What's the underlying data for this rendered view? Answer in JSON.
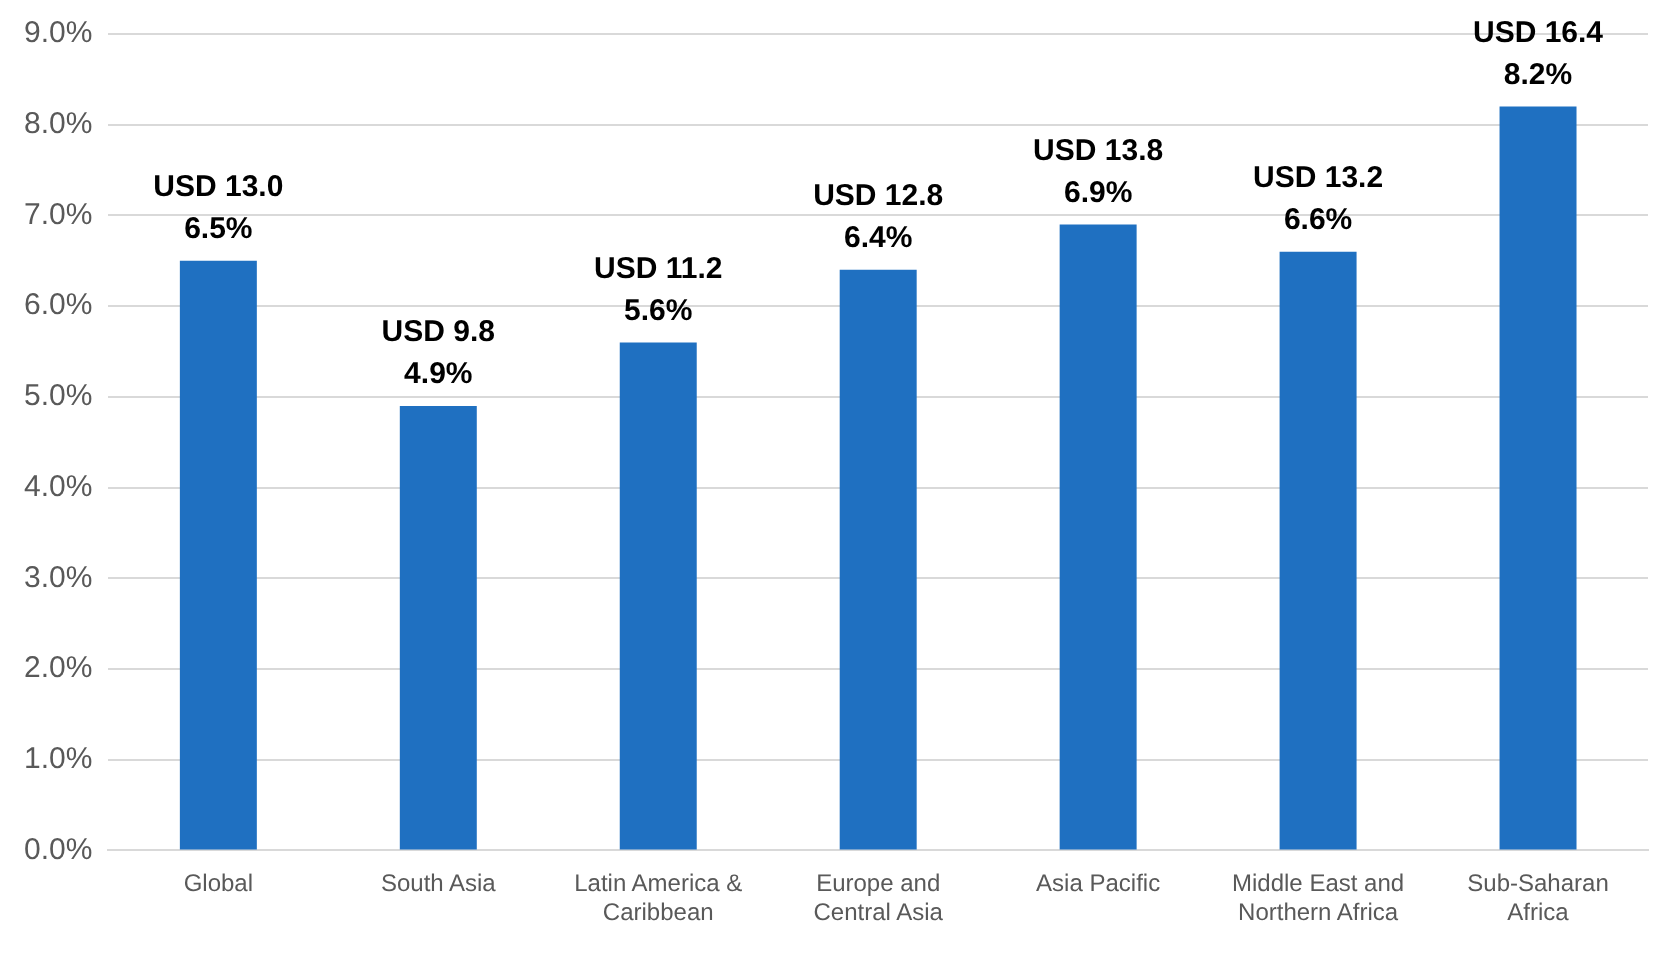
{
  "chart_data": {
    "type": "bar",
    "categories": [
      "Global",
      "South Asia",
      "Latin America & Caribbean",
      "Europe and Central Asia",
      "Asia Pacific",
      "Middle East and Northern Africa",
      "Sub-Saharan Africa"
    ],
    "values": [
      6.5,
      4.9,
      5.6,
      6.4,
      6.9,
      6.6,
      8.2
    ],
    "value_labels": [
      "USD 13.0\n6.5%",
      "USD 9.8\n4.9%",
      "USD 11.2\n5.6%",
      "USD 12.8\n6.4%",
      "USD 13.8\n6.9%",
      "USD 13.2\n6.6%",
      "USD 16.4\n8.2%"
    ],
    "color": "#1f70c1",
    "ylim": [
      0,
      9
    ],
    "yticks": [
      {
        "value": 0,
        "label": "0.0%"
      },
      {
        "value": 1,
        "label": "1.0%"
      },
      {
        "value": 2,
        "label": "2.0%"
      },
      {
        "value": 3,
        "label": "3.0%"
      },
      {
        "value": 4,
        "label": "4.0%"
      },
      {
        "value": 5,
        "label": "5.0%"
      },
      {
        "value": 6,
        "label": "6.0%"
      },
      {
        "value": 7,
        "label": "7.0%"
      },
      {
        "value": 8,
        "label": "8.0%"
      },
      {
        "value": 9,
        "label": "9.0%"
      }
    ],
    "grid": "y",
    "legend": false
  }
}
